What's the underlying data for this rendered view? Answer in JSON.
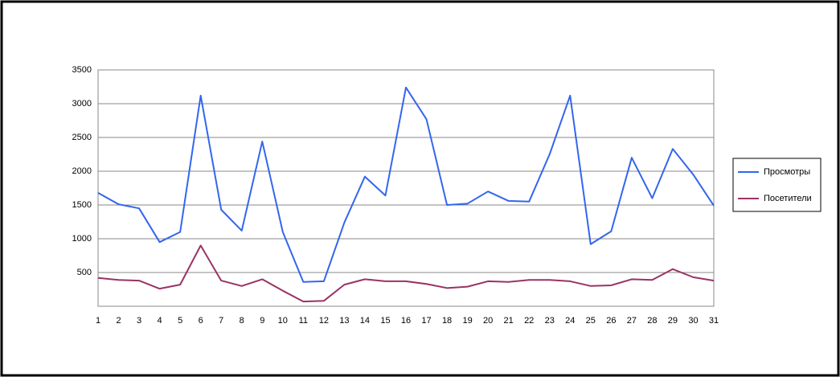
{
  "chart_data": {
    "type": "line",
    "x": [
      1,
      2,
      3,
      4,
      5,
      6,
      7,
      8,
      9,
      10,
      11,
      12,
      13,
      14,
      15,
      16,
      17,
      18,
      19,
      20,
      21,
      22,
      23,
      24,
      25,
      26,
      27,
      28,
      29,
      30,
      31
    ],
    "xlim": [
      1,
      31
    ],
    "ylim": [
      0,
      3500
    ],
    "yticks": [
      500,
      1000,
      1500,
      2000,
      2500,
      3000,
      3500
    ],
    "grid": true,
    "legend": "right",
    "series": [
      {
        "name": "Просмотры",
        "color": "#3366ee",
        "values": [
          1680,
          1510,
          1450,
          950,
          1100,
          3120,
          1430,
          1120,
          2440,
          1100,
          360,
          370,
          1240,
          1920,
          1640,
          3240,
          2770,
          1500,
          1520,
          1700,
          1560,
          1550,
          2250,
          3120,
          920,
          1110,
          2200,
          1600,
          2330,
          1950,
          1490
        ]
      },
      {
        "name": "Посетители",
        "color": "#993366",
        "values": [
          420,
          390,
          380,
          260,
          320,
          900,
          380,
          300,
          400,
          230,
          70,
          80,
          320,
          400,
          370,
          370,
          330,
          270,
          290,
          370,
          360,
          390,
          390,
          370,
          300,
          310,
          400,
          390,
          550,
          430,
          380
        ]
      }
    ]
  }
}
